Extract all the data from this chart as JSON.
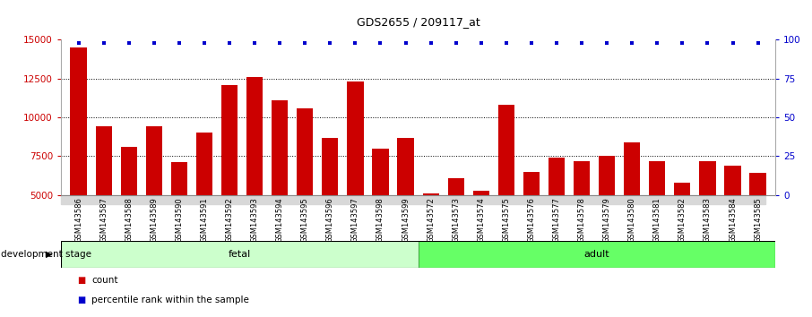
{
  "title": "GDS2655 / 209117_at",
  "categories": [
    "GSM143586",
    "GSM143587",
    "GSM143588",
    "GSM143589",
    "GSM143590",
    "GSM143591",
    "GSM143592",
    "GSM143593",
    "GSM143594",
    "GSM143595",
    "GSM143596",
    "GSM143597",
    "GSM143598",
    "GSM143599",
    "GSM143572",
    "GSM143573",
    "GSM143574",
    "GSM143575",
    "GSM143576",
    "GSM143577",
    "GSM143578",
    "GSM143579",
    "GSM143580",
    "GSM143581",
    "GSM143582",
    "GSM143583",
    "GSM143584",
    "GSM143585"
  ],
  "values": [
    14500,
    9400,
    8100,
    9400,
    7100,
    9000,
    12100,
    12600,
    11100,
    10600,
    8700,
    12300,
    8000,
    8700,
    5100,
    6100,
    5300,
    10800,
    6500,
    7400,
    7200,
    7500,
    8400,
    7200,
    5800,
    7200,
    6900,
    6400
  ],
  "bar_color": "#cc0000",
  "dot_color": "#0000cc",
  "ylim_left": [
    5000,
    15000
  ],
  "ylim_right": [
    0,
    100
  ],
  "yticks_left": [
    5000,
    7500,
    10000,
    12500,
    15000
  ],
  "yticks_right": [
    0,
    25,
    50,
    75,
    100
  ],
  "grid_values": [
    7500,
    10000,
    12500
  ],
  "n_fetal": 14,
  "n_adult": 14,
  "fetal_color": "#ccffcc",
  "adult_color": "#66ff66",
  "stage_label": "development stage",
  "fetal_label": "fetal",
  "adult_label": "adult",
  "legend_count": "count",
  "legend_percentile": "percentile rank within the sample",
  "plot_bg_color": "#ffffff",
  "tick_bg_color": "#d8d8d8"
}
